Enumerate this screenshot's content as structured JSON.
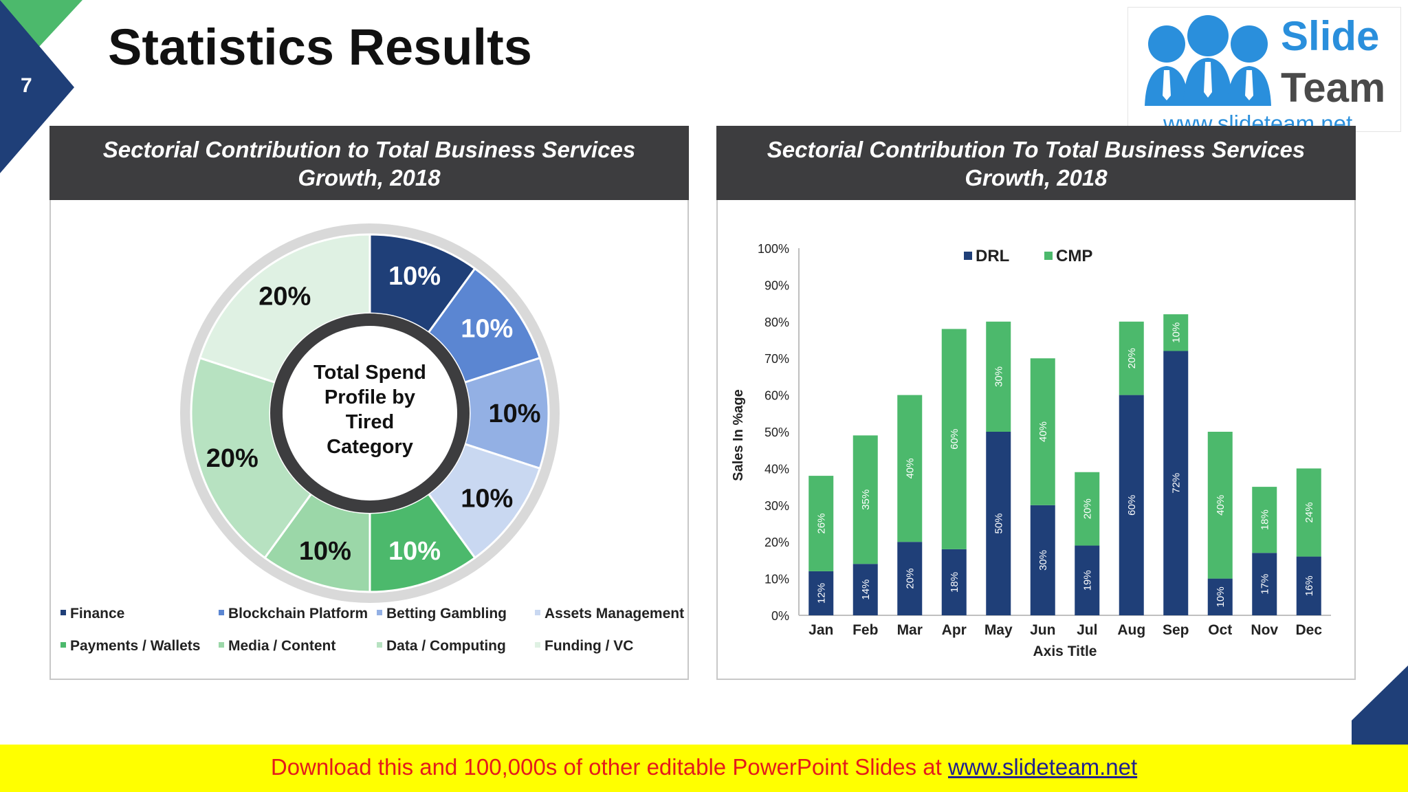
{
  "slide_number": "7",
  "title": "Statistics Results",
  "logo": {
    "line1": "Slide",
    "line2": "Team",
    "url": "www.slideteam.net"
  },
  "footer": {
    "text": "Download this and 100,000s of other editable PowerPoint Slides at ",
    "link": "www.slideteam.net"
  },
  "colors": {
    "dark_navy": "#1f3f78",
    "accent_green": "#4cb96c",
    "footer_bg": "#ffff00",
    "header_bg": "#3d3d3f"
  },
  "left_panel": {
    "header_line1": "Sectorial Contribution to Total Business Services",
    "header_line2": "Growth, 2018",
    "center_label": [
      "Total Spend",
      "Profile by",
      "Tired",
      "Category"
    ]
  },
  "right_panel": {
    "header_line1": "Sectorial Contribution To Total Business Services",
    "header_line2": "Growth, 2018"
  },
  "chart_data": [
    {
      "type": "pie",
      "subtype": "doughnut",
      "title": "Sectorial Contribution to Total Business Services Growth, 2018",
      "center_text": "Total Spend Profile by Tired Category",
      "slices": [
        {
          "label": "Finance",
          "value": 10,
          "text": "10%",
          "color": "#1f3f78",
          "text_color": "#ffffff"
        },
        {
          "label": "Blockchain Platform",
          "value": 10,
          "text": "10%",
          "color": "#5b86d2",
          "text_color": "#ffffff"
        },
        {
          "label": "Betting Gambling",
          "value": 10,
          "text": "10%",
          "color": "#93b0e4",
          "text_color": "#111111"
        },
        {
          "label": "Assets Management",
          "value": 10,
          "text": "10%",
          "color": "#c9d8f1",
          "text_color": "#111111"
        },
        {
          "label": "Payments / Wallets",
          "value": 10,
          "text": "10%",
          "color": "#4cb96c",
          "text_color": "#ffffff"
        },
        {
          "label": "Media / Content",
          "value": 10,
          "text": "10%",
          "color": "#9bd7a8",
          "text_color": "#111111"
        },
        {
          "label": "Data / Computing",
          "value": 20,
          "text": "20%",
          "color": "#b7e2c1",
          "text_color": "#111111"
        },
        {
          "label": "Funding / VC",
          "value": 20,
          "text": "20%",
          "color": "#dff1e3",
          "text_color": "#111111"
        }
      ],
      "legend_position": "bottom"
    },
    {
      "type": "bar",
      "subtype": "stacked",
      "title": "Sectorial Contribution To Total Business Services Growth, 2018",
      "categories": [
        "Jan",
        "Feb",
        "Mar",
        "Apr",
        "May",
        "Jun",
        "Jul",
        "Aug",
        "Sep",
        "Oct",
        "Nov",
        "Dec"
      ],
      "series": [
        {
          "name": "DRL",
          "color": "#1f3f78",
          "values": [
            12,
            14,
            20,
            18,
            50,
            30,
            19,
            60,
            72,
            10,
            17,
            16
          ],
          "labels": [
            "12%",
            "14%",
            "20%",
            "18%",
            "50%",
            "30%",
            "19%",
            "60%",
            "72%",
            "10%",
            "17%",
            "16%"
          ]
        },
        {
          "name": "CMP",
          "color": "#4cb96c",
          "values": [
            26,
            35,
            40,
            60,
            30,
            40,
            20,
            20,
            10,
            40,
            18,
            24
          ],
          "labels": [
            "26%",
            "35%",
            "40%",
            "60%",
            "30%",
            "40%",
            "20%",
            "20%",
            "10%",
            "40%",
            "18%",
            "24%"
          ]
        }
      ],
      "xlabel": "Axis Title",
      "ylabel": "Sales In %age",
      "ylim": [
        0,
        100
      ],
      "yticks": [
        "0%",
        "10%",
        "20%",
        "30%",
        "40%",
        "50%",
        "60%",
        "70%",
        "80%",
        "90%",
        "100%"
      ],
      "legend_position": "top",
      "grid": false
    }
  ]
}
